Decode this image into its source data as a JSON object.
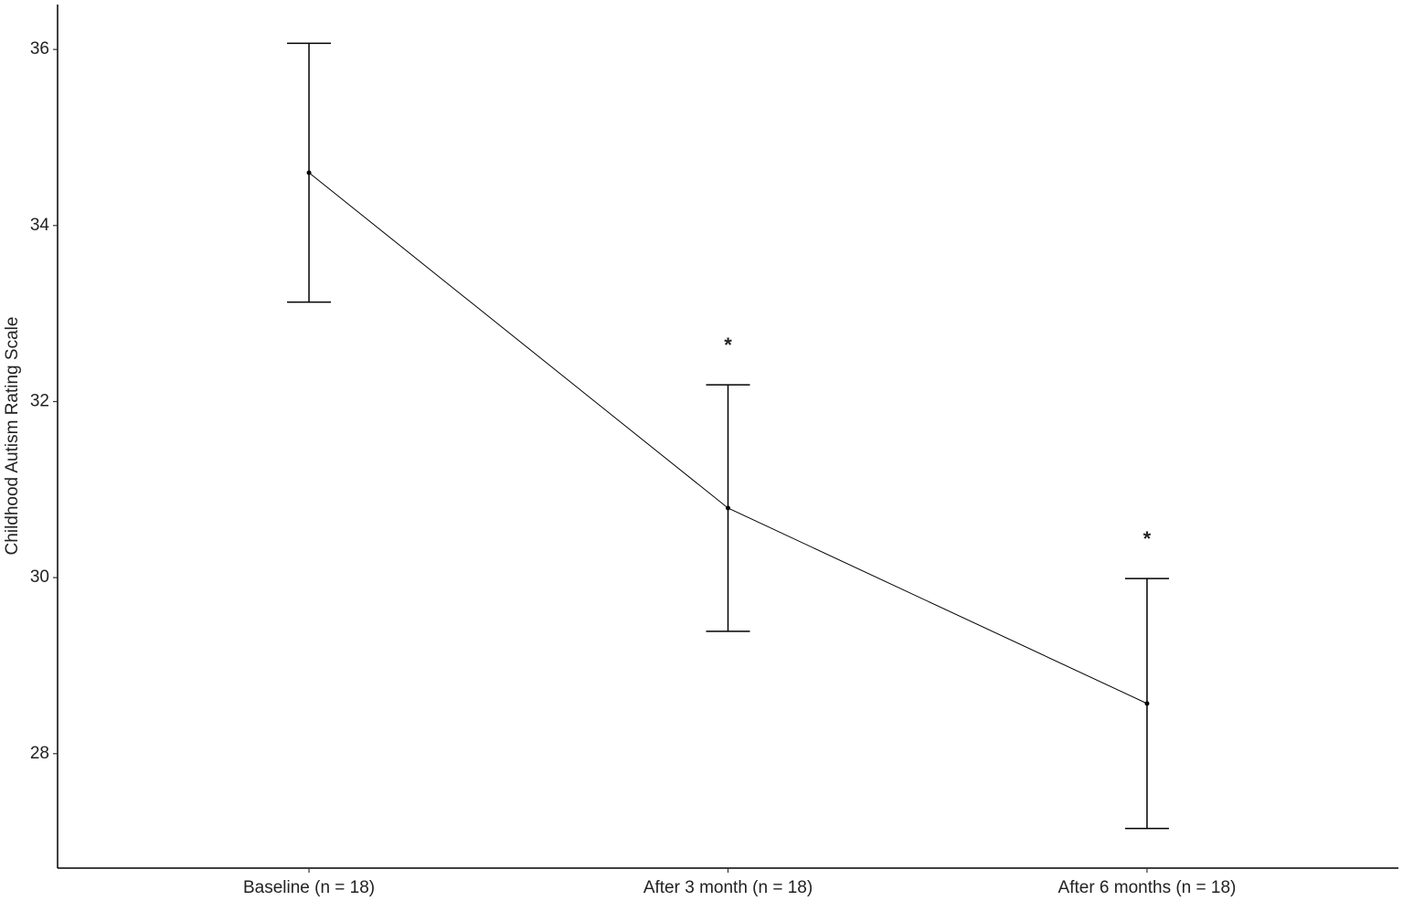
{
  "chart_data": {
    "type": "line",
    "y_label": "Childhood Autism Rating Scale",
    "categories": [
      "Baseline (n = 18)",
      "After 3 month (n = 18)",
      "After 6 months (n = 18)"
    ],
    "values": [
      34.6,
      30.79,
      28.57
    ],
    "errors": [
      1.47,
      1.4,
      1.42
    ],
    "annotations": [
      null,
      "*",
      "*"
    ],
    "color": "#000000",
    "ylim": [
      26.7,
      36.51
    ],
    "yticks": [
      28,
      30,
      32,
      34,
      36
    ],
    "grid": false
  }
}
